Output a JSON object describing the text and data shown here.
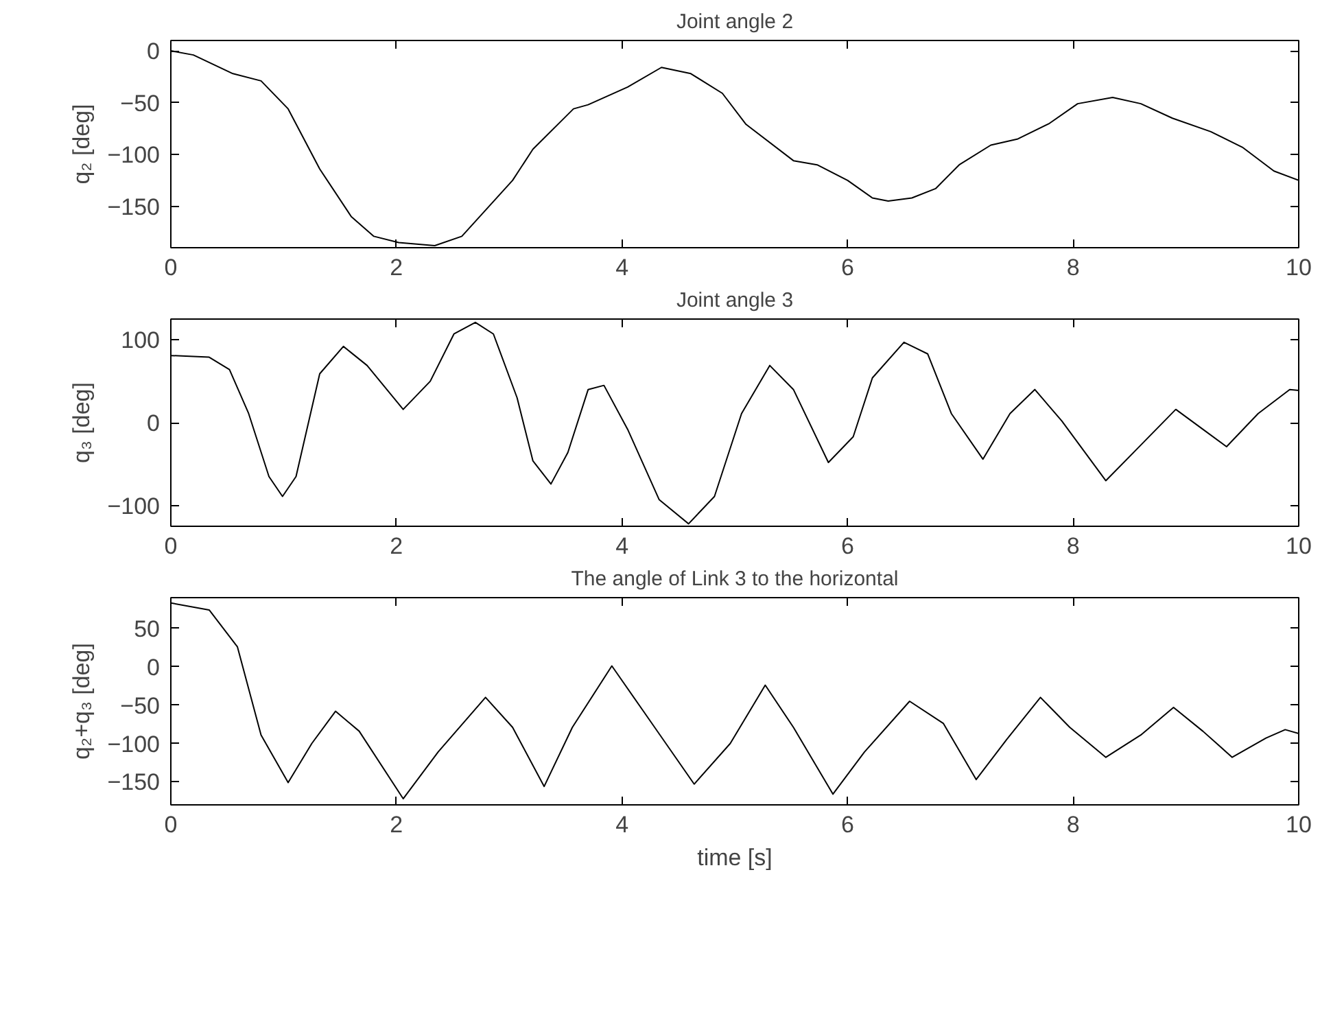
{
  "chart_data": [
    {
      "type": "line",
      "title": "Joint angle 2",
      "ylabel": "q₂ [deg]",
      "xlim": [
        0,
        10
      ],
      "xticks": [
        0,
        2,
        4,
        6,
        8,
        10
      ],
      "ylim": [
        -190,
        10
      ],
      "yticks": [
        {
          "value": -150,
          "label": "−150"
        },
        {
          "value": -100,
          "label": "−100"
        },
        {
          "value": -50,
          "label": "−50"
        },
        0
      ],
      "grid": false,
      "marker": "none",
      "line_style": "solid",
      "series": [
        {
          "color": "#000000",
          "x": [
            0,
            0.2,
            0.55,
            0.8,
            1.04,
            1.32,
            1.6,
            1.8,
            2.02,
            2.34,
            2.58,
            3.03,
            3.21,
            3.57,
            3.7,
            4.05,
            4.35,
            4.61,
            4.89,
            5.1,
            5.52,
            5.73,
            6.0,
            6.22,
            6.36,
            6.57,
            6.78,
            6.99,
            7.27,
            7.51,
            7.79,
            8.04,
            8.35,
            8.6,
            8.88,
            9.22,
            9.5,
            9.78,
            10
          ],
          "values": [
            0,
            -4,
            -22,
            -29,
            -56,
            -114,
            -160,
            -179,
            -185,
            -188,
            -179,
            -125,
            -95,
            -56,
            -52,
            -35,
            -16,
            -22,
            -41,
            -71,
            -106,
            -110,
            -125,
            -142,
            -145,
            -142,
            -133,
            -110,
            -91,
            -85,
            -70,
            -51,
            -45,
            -51,
            -65,
            -78,
            -93,
            -116,
            -125
          ]
        }
      ]
    },
    {
      "type": "line",
      "title": "Joint angle 3",
      "ylabel": "q₃ [deg]",
      "xlim": [
        0,
        10
      ],
      "xticks": [
        0,
        2,
        4,
        6,
        8,
        10
      ],
      "ylim": [
        -125,
        125
      ],
      "yticks": [
        {
          "value": -100,
          "label": "−100"
        },
        0,
        100
      ],
      "grid": false,
      "marker": "none",
      "line_style": "solid",
      "series": [
        {
          "color": "#000000",
          "x": [
            0,
            0.34,
            0.52,
            0.69,
            0.87,
            0.99,
            1.11,
            1.32,
            1.53,
            1.74,
            2.06,
            2.3,
            2.51,
            2.7,
            2.86,
            3.07,
            3.21,
            3.37,
            3.52,
            3.7,
            3.84,
            4.05,
            4.33,
            4.59,
            4.82,
            5.06,
            5.31,
            5.52,
            5.83,
            6.05,
            6.22,
            6.5,
            6.71,
            6.92,
            7.2,
            7.44,
            7.66,
            7.9,
            8.29,
            8.6,
            8.91,
            9.15,
            9.36,
            9.64,
            9.92,
            10
          ],
          "values": [
            81,
            79,
            64,
            11,
            -65,
            -89,
            -65,
            59,
            92,
            69,
            16,
            50,
            107,
            121,
            107,
            30,
            -46,
            -74,
            -36,
            40,
            45,
            -8,
            -93,
            -122,
            -89,
            11,
            69,
            40,
            -48,
            -17,
            54,
            97,
            83,
            11,
            -44,
            11,
            40,
            2,
            -70,
            -27,
            16,
            -8,
            -29,
            11,
            40,
            39
          ]
        }
      ]
    },
    {
      "type": "line",
      "title": "The angle of Link 3 to the horizontal",
      "ylabel": "q₂+q₃ [deg]",
      "xlabel": "time [s]",
      "xlim": [
        0,
        10
      ],
      "xticks": [
        0,
        2,
        4,
        6,
        8,
        10
      ],
      "ylim": [
        -180,
        90
      ],
      "yticks": [
        {
          "value": -150,
          "label": "−150"
        },
        {
          "value": -100,
          "label": "−100"
        },
        {
          "value": -50,
          "label": "−50"
        },
        0,
        50
      ],
      "grid": false,
      "marker": "none",
      "line_style": "solid",
      "series": [
        {
          "color": "#000000",
          "x": [
            0,
            0.34,
            0.59,
            0.8,
            1.04,
            1.25,
            1.46,
            1.67,
            2.06,
            2.37,
            2.79,
            3.03,
            3.31,
            3.56,
            3.91,
            4.19,
            4.64,
            4.96,
            5.27,
            5.52,
            5.87,
            6.15,
            6.55,
            6.85,
            7.14,
            7.41,
            7.71,
            7.97,
            8.29,
            8.6,
            8.89,
            9.15,
            9.41,
            9.71,
            9.88,
            10
          ],
          "values": [
            83,
            74,
            26,
            -89,
            -151,
            -100,
            -58,
            -84,
            -172,
            -111,
            -40,
            -79,
            -156,
            -79,
            1,
            -58,
            -153,
            -100,
            -24,
            -79,
            -166,
            -111,
            -45,
            -74,
            -147,
            -95,
            -40,
            -79,
            -118,
            -89,
            -53,
            -84,
            -118,
            -93,
            -82,
            -87
          ]
        }
      ]
    }
  ]
}
